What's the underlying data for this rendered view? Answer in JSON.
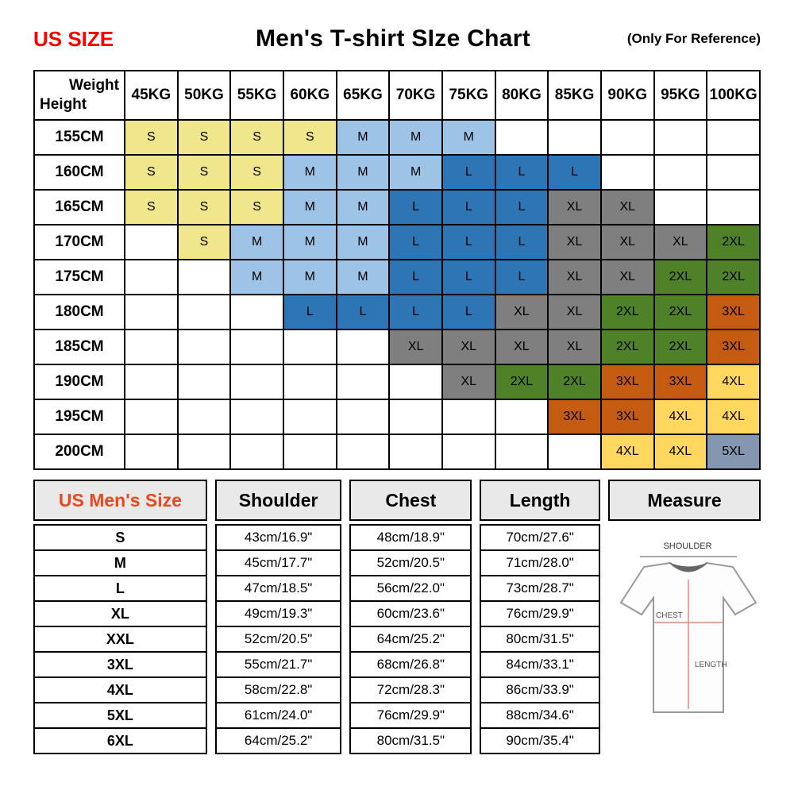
{
  "header": {
    "us_size": "US SIZE",
    "title": "Men's T-shirt SIze Chart",
    "reference": "(Only For Reference)"
  },
  "colors": {
    "us_size_red": "#FF0000",
    "size_header_orange": "#E8481C",
    "table_header_gray": "#E9E9E9"
  },
  "chart_data": [
    {
      "type": "heatmap",
      "title": "Men's T-shirt SIze Chart",
      "corner": {
        "weight": "Weight",
        "height": "Height"
      },
      "x_categories": [
        "45KG",
        "50KG",
        "55KG",
        "60KG",
        "65KG",
        "70KG",
        "75KG",
        "80KG",
        "85KG",
        "90KG",
        "95KG",
        "100KG"
      ],
      "y_categories": [
        "155CM",
        "160CM",
        "165CM",
        "170CM",
        "175CM",
        "180CM",
        "185CM",
        "190CM",
        "195CM",
        "200CM"
      ],
      "cells": [
        [
          "S",
          "S",
          "S",
          "S",
          "M",
          "M",
          "M",
          "",
          "",
          "",
          "",
          ""
        ],
        [
          "S",
          "S",
          "S",
          "M",
          "M",
          "M",
          "L",
          "L",
          "L",
          "",
          "",
          ""
        ],
        [
          "S",
          "S",
          "S",
          "M",
          "M",
          "L",
          "L",
          "L",
          "XL",
          "XL",
          "",
          ""
        ],
        [
          "",
          "S",
          "M",
          "M",
          "M",
          "L",
          "L",
          "L",
          "XL",
          "XL",
          "XL",
          "2XL"
        ],
        [
          "",
          "",
          "M",
          "M",
          "M",
          "L",
          "L",
          "L",
          "XL",
          "XL",
          "2XL",
          "2XL"
        ],
        [
          "",
          "",
          "",
          "L",
          "L",
          "L",
          "L",
          "XL",
          "XL",
          "2XL",
          "2XL",
          "3XL"
        ],
        [
          "",
          "",
          "",
          "",
          "",
          "XL",
          "XL",
          "XL",
          "XL",
          "2XL",
          "2XL",
          "3XL"
        ],
        [
          "",
          "",
          "",
          "",
          "",
          "",
          "XL",
          "2XL",
          "2XL",
          "3XL",
          "3XL",
          "4XL"
        ],
        [
          "",
          "",
          "",
          "",
          "",
          "",
          "",
          "",
          "3XL",
          "3XL",
          "4XL",
          "4XL"
        ],
        [
          "",
          "",
          "",
          "",
          "",
          "",
          "",
          "",
          "",
          "4XL",
          "4XL",
          "5XL"
        ]
      ],
      "size_colors": {
        "S": "#F0E68C",
        "M": "#9DC3E6",
        "L": "#2E75B6",
        "XL": "#7F7F7F",
        "2XL": "#4F8228",
        "3XL": "#C55A11",
        "4XL": "#FFD75E",
        "5XL": "#8496B0"
      }
    },
    {
      "type": "table",
      "headers": [
        "US Men's Size",
        "Shoulder",
        "Chest",
        "Length",
        "Measure"
      ],
      "rows": [
        {
          "size": "S",
          "shoulder": "43cm/16.9\"",
          "chest": "48cm/18.9\"",
          "length": "70cm/27.6\""
        },
        {
          "size": "M",
          "shoulder": "45cm/17.7\"",
          "chest": "52cm/20.5\"",
          "length": "71cm/28.0\""
        },
        {
          "size": "L",
          "shoulder": "47cm/18.5\"",
          "chest": "56cm/22.0\"",
          "length": "73cm/28.7\""
        },
        {
          "size": "XL",
          "shoulder": "49cm/19.3\"",
          "chest": "60cm/23.6\"",
          "length": "76cm/29.9\""
        },
        {
          "size": "XXL",
          "shoulder": "52cm/20.5\"",
          "chest": "64cm/25.2\"",
          "length": "80cm/31.5\""
        },
        {
          "size": "3XL",
          "shoulder": "55cm/21.7\"",
          "chest": "68cm/26.8\"",
          "length": "84cm/33.1\""
        },
        {
          "size": "4XL",
          "shoulder": "58cm/22.8\"",
          "chest": "72cm/28.3\"",
          "length": "86cm/33.9\""
        },
        {
          "size": "5XL",
          "shoulder": "61cm/24.0\"",
          "chest": "76cm/29.9\"",
          "length": "88cm/34.6\""
        },
        {
          "size": "6XL",
          "shoulder": "64cm/25.2\"",
          "chest": "80cm/31.5\"",
          "length": "90cm/35.4\""
        }
      ],
      "diagram_labels": {
        "shoulder": "SHOULDER",
        "chest": "CHEST",
        "length": "LENGTH"
      }
    }
  ]
}
